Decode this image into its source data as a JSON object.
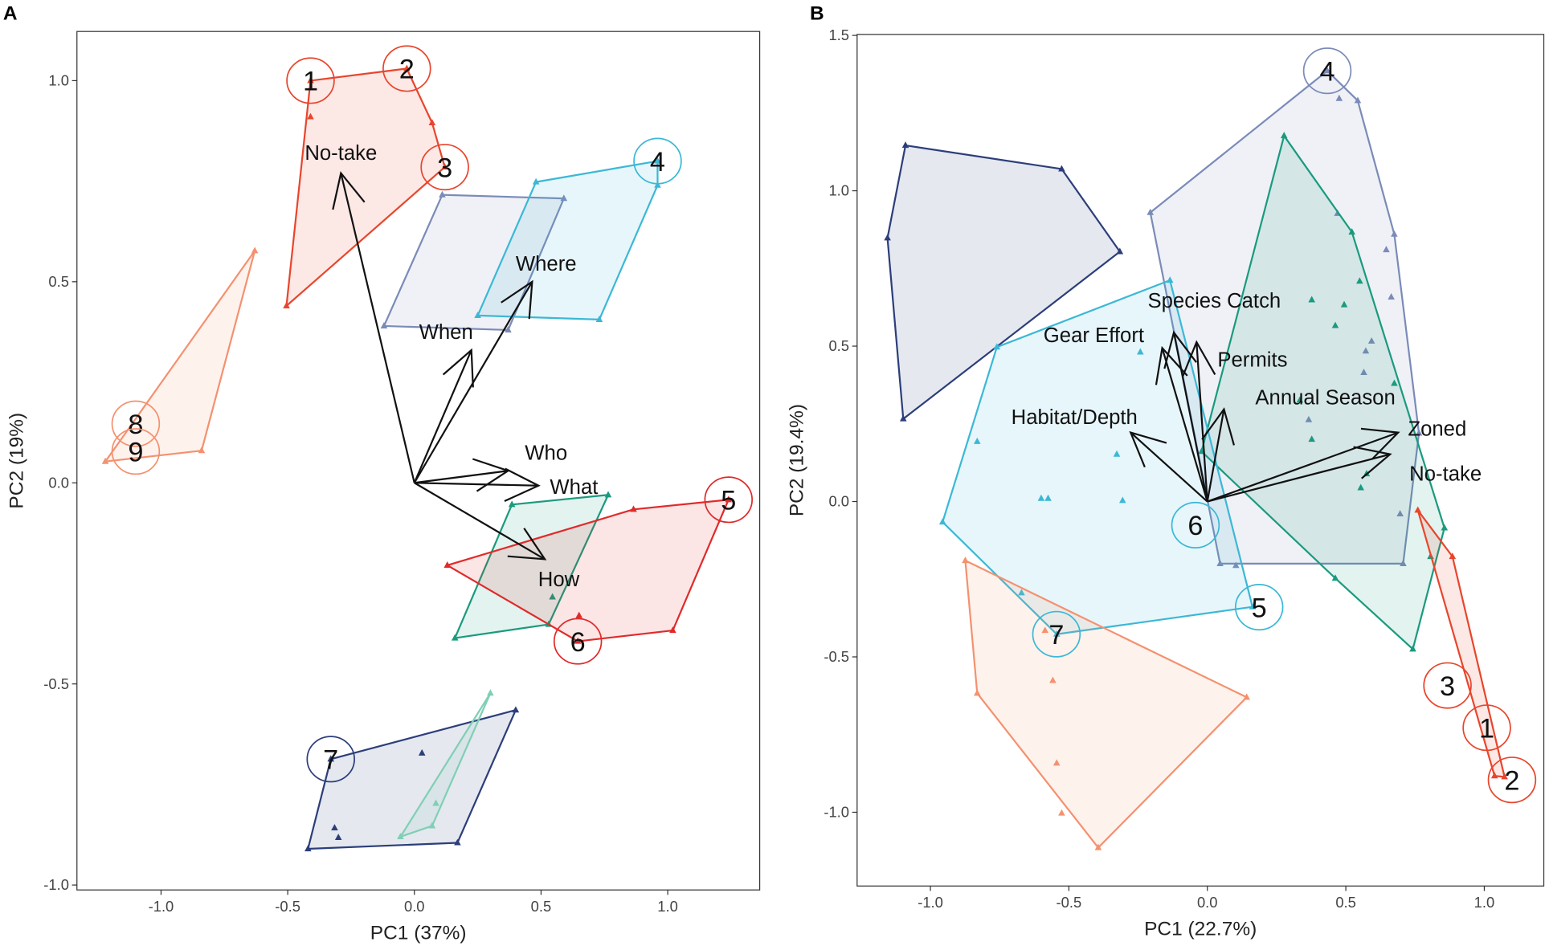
{
  "chart_data": [
    {
      "type": "scatter",
      "panel": "A",
      "title": "",
      "xlabel": "PC1 (37%)",
      "ylabel": "PC2 (19%)",
      "xlim": [
        -1.33,
        1.37
      ],
      "ylim": [
        -1.01,
        1.12
      ],
      "xticks": [
        "-1.0",
        "-0.5",
        "0.0",
        "0.5",
        "1.0"
      ],
      "xtick_values": [
        -1.0,
        -0.5,
        0.0,
        0.5,
        1.0
      ],
      "yticks": [
        "-1.0",
        "-0.5",
        "0.0",
        "0.5",
        "1.0"
      ],
      "ytick_values": [
        -1.0,
        -0.5,
        0.0,
        0.5,
        1.0
      ],
      "grid": false,
      "groups": [
        {
          "color": "#e8452c",
          "hull": [
            [
              -0.41,
              1.0
            ],
            [
              -0.03,
              1.03
            ],
            [
              0.07,
              0.895
            ],
            [
              0.12,
              0.785
            ],
            [
              -0.505,
              0.44
            ]
          ],
          "points": [
            [
              -0.41,
              0.91
            ]
          ]
        },
        {
          "color": "#f4916f",
          "hull": [
            [
              -0.63,
              0.577
            ],
            [
              -0.84,
              0.08
            ],
            [
              -1.22,
              0.053
            ]
          ],
          "points": []
        },
        {
          "color": "#7b8bb8",
          "hull": [
            [
              0.11,
              0.716
            ],
            [
              0.59,
              0.707
            ],
            [
              0.37,
              0.38
            ],
            [
              -0.12,
              0.39
            ]
          ],
          "points": []
        },
        {
          "color": "#3bb8d6",
          "hull": [
            [
              0.48,
              0.748
            ],
            [
              0.96,
              0.8
            ],
            [
              0.96,
              0.74
            ],
            [
              0.73,
              0.406
            ],
            [
              0.25,
              0.416
            ]
          ],
          "points": []
        },
        {
          "color": "#1a9a7e",
          "hull": [
            [
              0.385,
              -0.054
            ],
            [
              0.765,
              -0.03
            ],
            [
              0.53,
              -0.352
            ],
            [
              0.16,
              -0.386
            ]
          ],
          "points": [
            [
              0.545,
              -0.284
            ]
          ]
        },
        {
          "color": "#e02a2a",
          "hull": [
            [
              0.13,
              -0.205
            ],
            [
              0.865,
              -0.066
            ],
            [
              1.24,
              -0.042
            ],
            [
              1.02,
              -0.367
            ],
            [
              0.645,
              -0.394
            ]
          ],
          "points": [
            [
              0.65,
              -0.33
            ]
          ]
        },
        {
          "color": "#2c3e7a",
          "hull": [
            [
              -0.33,
              -0.687
            ],
            [
              0.4,
              -0.565
            ],
            [
              0.17,
              -0.895
            ],
            [
              -0.42,
              -0.91
            ]
          ],
          "points": [
            [
              0.03,
              -0.672
            ],
            [
              -0.315,
              -0.858
            ],
            [
              -0.3,
              -0.882
            ]
          ]
        },
        {
          "color": "#7fcfb5",
          "hull": [
            [
              0.3,
              -0.523
            ],
            [
              0.07,
              -0.853
            ],
            [
              -0.055,
              -0.88
            ]
          ],
          "points": [
            [
              0.085,
              -0.797
            ]
          ]
        }
      ],
      "circled_labels": [
        {
          "label": "1",
          "x": -0.41,
          "y": 1.0,
          "color": "#e8452c"
        },
        {
          "label": "2",
          "x": -0.03,
          "y": 1.03,
          "color": "#e8452c"
        },
        {
          "label": "3",
          "x": 0.12,
          "y": 0.785,
          "color": "#e8452c"
        },
        {
          "label": "4",
          "x": 0.96,
          "y": 0.8,
          "color": "#3bb8d6"
        },
        {
          "label": "5",
          "x": 1.24,
          "y": -0.042,
          "color": "#e02a2a"
        },
        {
          "label": "6",
          "x": 0.645,
          "y": -0.394,
          "color": "#e02a2a"
        },
        {
          "label": "7",
          "x": -0.33,
          "y": -0.687,
          "color": "#2c3e7a"
        },
        {
          "label": "8",
          "x": -1.1,
          "y": 0.147,
          "color": "#f4916f"
        },
        {
          "label": "9",
          "x": -1.1,
          "y": 0.078,
          "color": "#f4916f"
        }
      ],
      "vectors": [
        {
          "label": "No-take",
          "x": -0.29,
          "y": 0.77,
          "lx": -0.29,
          "ly": 0.82
        },
        {
          "label": "When",
          "x": 0.225,
          "y": 0.33,
          "lx": 0.125,
          "ly": 0.375
        },
        {
          "label": "Where",
          "x": 0.465,
          "y": 0.5,
          "lx": 0.52,
          "ly": 0.545
        },
        {
          "label": "Who",
          "x": 0.37,
          "y": 0.03,
          "lx": 0.52,
          "ly": 0.075
        },
        {
          "label": "What",
          "x": 0.49,
          "y": -0.007,
          "lx": 0.63,
          "ly": -0.01
        },
        {
          "label": "How",
          "x": 0.515,
          "y": -0.19,
          "lx": 0.57,
          "ly": -0.24
        }
      ]
    },
    {
      "type": "scatter",
      "panel": "B",
      "title": "",
      "xlabel": "PC1 (22.7%)",
      "ylabel": "PC2 (19.4%)",
      "xlim": [
        -1.26,
        1.22
      ],
      "ylim": [
        -1.23,
        1.5
      ],
      "xticks": [
        "-1.0",
        "-0.5",
        "0.0",
        "0.5",
        "1.0"
      ],
      "xtick_values": [
        -1.0,
        -0.5,
        0.0,
        0.5,
        1.0
      ],
      "yticks": [
        "-1.0",
        "-0.5",
        "0.0",
        "0.5",
        "1.0",
        "1.5"
      ],
      "ytick_values": [
        -1.0,
        -0.5,
        0.0,
        0.5,
        1.0,
        1.5
      ],
      "grid": false,
      "groups": [
        {
          "color": "#2c3e7a",
          "hull": [
            [
              -1.09,
              1.146
            ],
            [
              -0.526,
              1.07
            ],
            [
              -0.316,
              0.804
            ],
            [
              -1.098,
              0.266
            ],
            [
              -1.155,
              0.848
            ]
          ],
          "points": []
        },
        {
          "color": "#7b8bb8",
          "hull": [
            [
              0.433,
              1.386
            ],
            [
              0.543,
              1.29
            ],
            [
              0.675,
              0.86
            ],
            [
              0.764,
              0.22
            ],
            [
              0.707,
              -0.2
            ],
            [
              0.046,
              -0.2
            ],
            [
              -0.206,
              0.93
            ]
          ],
          "points": [
            [
              0.476,
              1.297
            ],
            [
              0.47,
              0.927
            ],
            [
              0.646,
              0.81
            ],
            [
              0.664,
              0.658
            ],
            [
              0.593,
              0.516
            ],
            [
              0.572,
              0.484
            ],
            [
              0.565,
              0.415
            ],
            [
              0.366,
              0.263
            ],
            [
              0.696,
              -0.04
            ],
            [
              0.103,
              -0.206
            ]
          ]
        },
        {
          "color": "#1a9a7e",
          "hull": [
            [
              0.277,
              1.177
            ],
            [
              0.522,
              0.867
            ],
            [
              0.856,
              -0.085
            ],
            [
              0.742,
              -0.475
            ],
            [
              0.462,
              -0.247
            ],
            [
              -0.021,
              0.161
            ]
          ],
          "points": [
            [
              0.377,
              0.649
            ],
            [
              0.462,
              0.566
            ],
            [
              0.494,
              0.633
            ],
            [
              0.55,
              0.709
            ],
            [
              0.675,
              0.38
            ],
            [
              0.334,
              0.326
            ],
            [
              0.377,
              0.2
            ],
            [
              0.575,
              0.089
            ],
            [
              0.554,
              0.044
            ],
            [
              0.806,
              -0.177
            ]
          ]
        },
        {
          "color": "#3bb8d6",
          "hull": [
            [
              -0.135,
              0.712
            ],
            [
              0.163,
              -0.339
            ],
            [
              -0.544,
              -0.427
            ],
            [
              -0.956,
              -0.066
            ],
            [
              -0.76,
              0.497
            ]
          ],
          "points": [
            [
              -0.242,
              0.481
            ],
            [
              -0.831,
              0.193
            ],
            [
              -0.327,
              0.152
            ],
            [
              -0.6,
              0.01
            ],
            [
              -0.575,
              0.01
            ],
            [
              -0.306,
              0.003
            ],
            [
              -0.671,
              -0.294
            ]
          ]
        },
        {
          "color": "#f4916f",
          "hull": [
            [
              -0.874,
              -0.19
            ],
            [
              0.142,
              -0.63
            ],
            [
              -0.394,
              -1.114
            ],
            [
              -0.831,
              -0.617
            ]
          ],
          "points": [
            [
              -0.586,
              -0.415
            ],
            [
              -0.558,
              -0.576
            ],
            [
              -0.544,
              -0.842
            ],
            [
              -0.526,
              -1.003
            ]
          ]
        },
        {
          "color": "#e8452c",
          "hull": [
            [
              0.76,
              -0.028
            ],
            [
              0.885,
              -0.177
            ],
            [
              1.073,
              -0.886
            ],
            [
              1.037,
              -0.883
            ]
          ],
          "points": []
        }
      ],
      "circled_labels": [
        {
          "label": "4",
          "x": 0.433,
          "y": 1.386,
          "color": "#7b8bb8"
        },
        {
          "label": "6",
          "x": -0.043,
          "y": -0.076,
          "color": "#3bb8d6"
        },
        {
          "label": "5",
          "x": 0.187,
          "y": -0.34,
          "color": "#3bb8d6"
        },
        {
          "label": "7",
          "x": -0.545,
          "y": -0.427,
          "color": "#3bb8d6"
        },
        {
          "label": "3",
          "x": 0.867,
          "y": -0.592,
          "color": "#e8452c"
        },
        {
          "label": "1",
          "x": 1.009,
          "y": -0.728,
          "color": "#e8452c"
        },
        {
          "label": "2",
          "x": 1.1,
          "y": -0.896,
          "color": "#e8452c"
        }
      ],
      "vectors": [
        {
          "label": "Species Catch",
          "x": -0.121,
          "y": 0.544,
          "lx": 0.025,
          "ly": 0.646
        },
        {
          "label": "Gear Effort",
          "x": -0.163,
          "y": 0.494,
          "lx": -0.41,
          "ly": 0.535
        },
        {
          "label": "Permits",
          "x": -0.039,
          "y": 0.513,
          "lx": 0.163,
          "ly": 0.456
        },
        {
          "label": "Annual Season",
          "x": 0.06,
          "y": 0.297,
          "lx": 0.426,
          "ly": 0.335
        },
        {
          "label": "Habitat/Depth",
          "x": -0.277,
          "y": 0.222,
          "lx": -0.48,
          "ly": 0.272
        },
        {
          "label": "Zoned",
          "x": 0.689,
          "y": 0.222,
          "lx": 0.83,
          "ly": 0.234
        },
        {
          "label": "No-take",
          "x": 0.66,
          "y": 0.152,
          "lx": 0.86,
          "ly": 0.089
        }
      ]
    }
  ],
  "panel_titles": [
    "A",
    "B"
  ]
}
